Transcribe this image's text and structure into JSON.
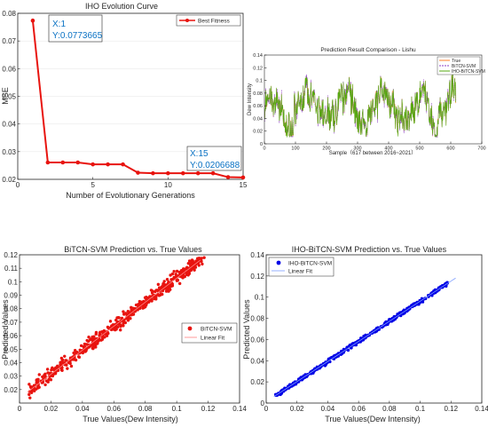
{
  "colors": {
    "red": "#e8140f",
    "blue": "#0000e6",
    "orange": "#ff7f27",
    "purple": "#8b3cc4",
    "green": "#55aa10",
    "tip_text": "#0a72c4",
    "fit_red": "#ff8080",
    "fit_blue": "#7d9dff"
  },
  "chart_data": [
    {
      "type": "line",
      "title": "IHO Evolution Curve",
      "xlabel": "Number of Evolutionary Generations",
      "ylabel": "MSE",
      "xlim": [
        0,
        15
      ],
      "ylim": [
        0.02,
        0.08
      ],
      "x_ticks": [
        "0",
        "5",
        "10",
        "15"
      ],
      "y_ticks": [
        "0.02",
        "0.03",
        "0.04",
        "0.05",
        "0.06",
        "0.07",
        "0.08"
      ],
      "legend": [
        "Best Fitness"
      ],
      "legend_position": "top-right",
      "series": [
        {
          "name": "Best Fitness",
          "x": [
            1,
            2,
            3,
            4,
            5,
            6,
            7,
            8,
            9,
            10,
            11,
            12,
            13,
            14,
            15
          ],
          "values": [
            0.0773665,
            0.0261,
            0.0261,
            0.0261,
            0.0254,
            0.0254,
            0.0254,
            0.0224,
            0.0222,
            0.0222,
            0.0222,
            0.0222,
            0.0222,
            0.0208,
            0.0206688
          ]
        }
      ],
      "datatips": [
        {
          "x_text": "X:1",
          "y_text": "Y:0.0773665"
        },
        {
          "x_text": "X:15",
          "y_text": "Y:0.0206688"
        }
      ]
    },
    {
      "type": "line",
      "title": "Prediction Result Comparison - Lishu",
      "xlabel": "Sample（617 between 2016~2021）",
      "ylabel": "Dew Intensity",
      "xlim": [
        0,
        700
      ],
      "ylim": [
        0,
        0.14
      ],
      "x_ticks": [
        "0",
        "100",
        "200",
        "300",
        "400",
        "500",
        "600",
        "700"
      ],
      "y_ticks": [
        "0",
        "0.02",
        "0.04",
        "0.06",
        "0.08",
        "0.1",
        "0.12",
        "0.14"
      ],
      "legend": [
        "True",
        "BiTCN-SVM",
        "IHO-BiTCN-SVM"
      ],
      "legend_position": "top-right",
      "n_samples": 617
    },
    {
      "type": "scatter",
      "title": "BiTCN-SVM Prediction vs. True Values",
      "xlabel": "True Values(Dew Intensity)",
      "ylabel": "Predicted Values",
      "xlim": [
        0,
        0.14
      ],
      "ylim": [
        0.01,
        0.12
      ],
      "x_ticks": [
        "0",
        "0.02",
        "0.04",
        "0.06",
        "0.08",
        "0.1",
        "0.12",
        "0.14"
      ],
      "y_ticks": [
        "0.02",
        "0.03",
        "0.04",
        "0.05",
        "0.06",
        "0.07",
        "0.08",
        "0.09",
        "0.1",
        "0.11",
        "0.12"
      ],
      "legend": [
        "BiTCN-SVM",
        "Linear Fit"
      ],
      "legend_position": "lower-right",
      "fit_line": {
        "x": [
          0.005,
          0.115
        ],
        "y": [
          0.018,
          0.116
        ]
      }
    },
    {
      "type": "scatter",
      "title": "IHO-BiTCN-SVM Prediction vs. True Values",
      "xlabel": "True Values(Dew Intensity)",
      "ylabel": "Predicted Values",
      "xlim": [
        0,
        0.14
      ],
      "ylim": [
        0,
        0.14
      ],
      "x_ticks": [
        "0",
        "0.02",
        "0.04",
        "0.06",
        "0.08",
        "0.1",
        "0.12",
        "0.14"
      ],
      "y_ticks": [
        "0",
        "0.02",
        "0.04",
        "0.06",
        "0.08",
        "0.1",
        "0.12",
        "0.14"
      ],
      "legend": [
        "IHO-BiTCN-SVM",
        "Linear Fit"
      ],
      "legend_position": "top-left",
      "fit_line": {
        "x": [
          0.005,
          0.123
        ],
        "y": [
          0.006,
          0.118
        ]
      }
    }
  ]
}
